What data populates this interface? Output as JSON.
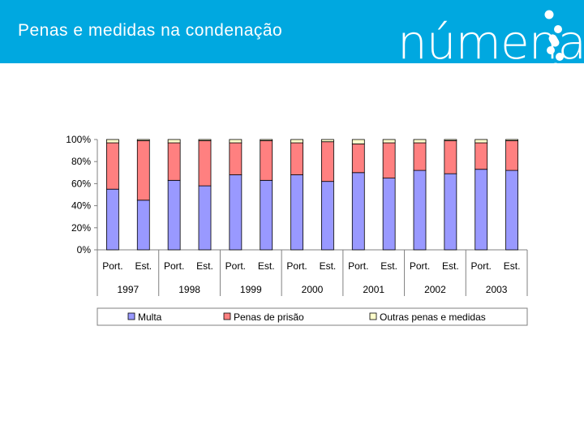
{
  "header": {
    "title": "Penas e medidas na condenação",
    "logo_text": "númena"
  },
  "colors": {
    "header_bg": "#00a8e0",
    "multa": "#9999ff",
    "prisao": "#ff8080",
    "outras": "#ffffcc"
  },
  "chart_data": {
    "type": "bar",
    "stacked": true,
    "percent": true,
    "title": "",
    "ylabel": "",
    "xlabel": "",
    "ylim": [
      0,
      100
    ],
    "yticks": [
      "100%",
      "80%",
      "60%",
      "40%",
      "20%",
      "0%"
    ],
    "years": [
      "1997",
      "1998",
      "1999",
      "2000",
      "2001",
      "2002",
      "2003"
    ],
    "categories": [
      "Port.",
      "Est.",
      "Port.",
      "Est.",
      "Port.",
      "Est.",
      "Port.",
      "Est.",
      "Port.",
      "Est.",
      "Port.",
      "Est.",
      "Port.",
      "Est."
    ],
    "series": [
      {
        "name": "Multa",
        "values": [
          55,
          45,
          63,
          58,
          68,
          63,
          68,
          62,
          70,
          65,
          72,
          69,
          73,
          72
        ]
      },
      {
        "name": "Penas de prisão",
        "values": [
          42,
          54,
          34,
          41,
          29,
          36,
          29,
          36,
          26,
          32,
          25,
          30,
          24,
          27
        ]
      },
      {
        "name": "Outras penas e medidas",
        "values": [
          3,
          1,
          3,
          1,
          3,
          1,
          3,
          2,
          4,
          3,
          3,
          1,
          3,
          1
        ]
      }
    ],
    "legend": "bottom"
  }
}
